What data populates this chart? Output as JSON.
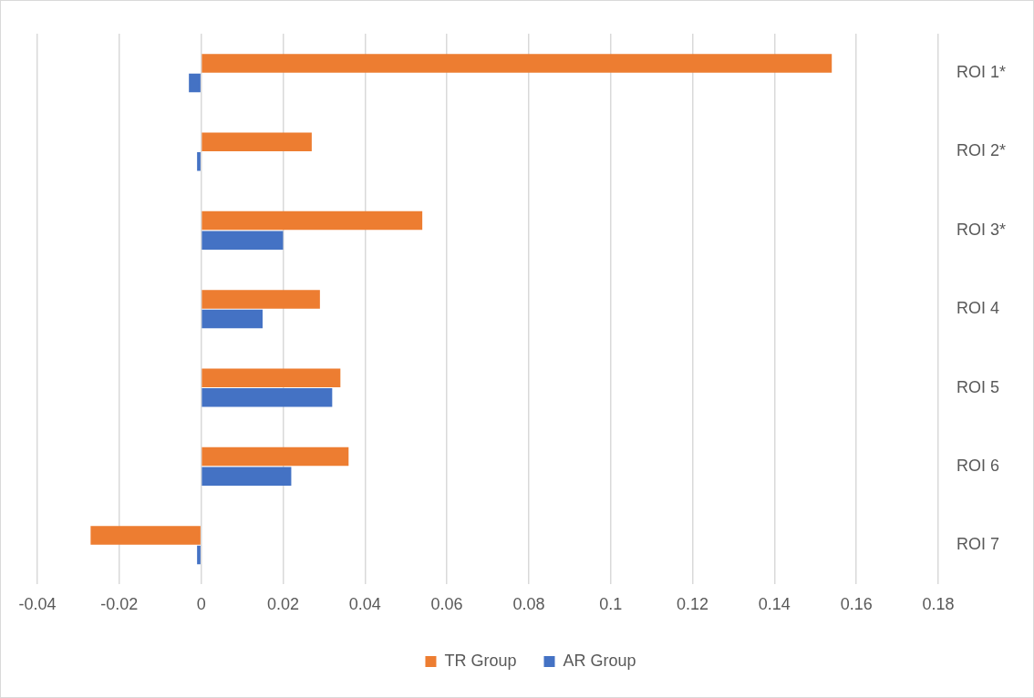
{
  "chart_data": {
    "type": "bar",
    "orientation": "horizontal",
    "categories": [
      "ROI 1*",
      "ROI 2*",
      "ROI 3*",
      "ROI 4",
      "ROI 5",
      "ROI 6",
      "ROI 7"
    ],
    "series": [
      {
        "name": "TR Group",
        "color": "#ed7d31",
        "values": [
          0.154,
          0.027,
          0.054,
          0.029,
          0.034,
          0.036,
          -0.027
        ]
      },
      {
        "name": "AR Group",
        "color": "#4472c4",
        "values": [
          -0.003,
          -0.001,
          0.02,
          0.015,
          0.032,
          0.022,
          -0.001
        ]
      }
    ],
    "xlim": [
      -0.04,
      0.18
    ],
    "xticks": [
      -0.04,
      -0.02,
      0,
      0.02,
      0.04,
      0.06,
      0.08,
      0.1,
      0.12,
      0.14,
      0.16,
      0.18
    ],
    "grid": "x",
    "legend": "bottom"
  }
}
